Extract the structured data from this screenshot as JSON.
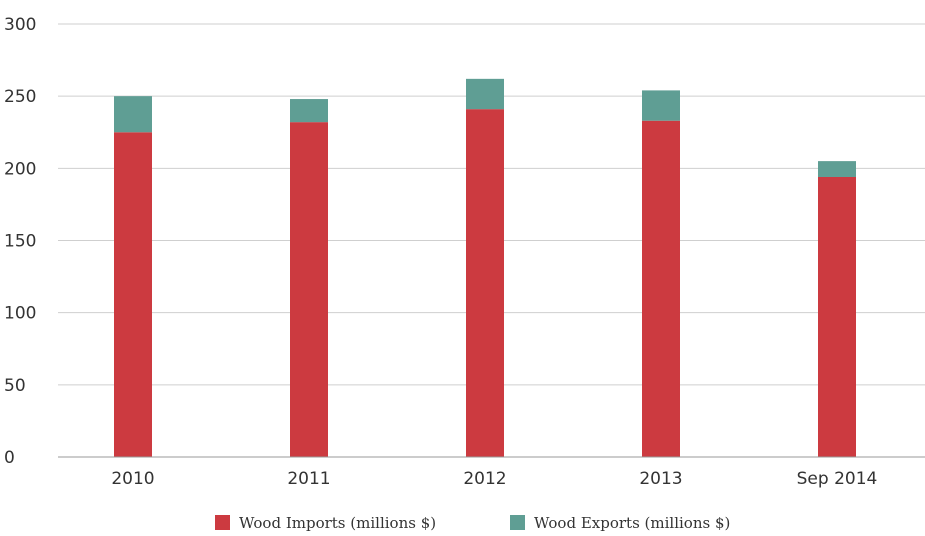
{
  "chart_data": {
    "type": "bar",
    "stacked": true,
    "categories": [
      "2010",
      "2011",
      "2012",
      "2013",
      "Sep 2014"
    ],
    "series": [
      {
        "name": "Wood Imports (millions $)",
        "color": "#cc3a40",
        "values": [
          225,
          232,
          241,
          233,
          194
        ]
      },
      {
        "name": "Wood Exports (millions $)",
        "color": "#5f9e94",
        "values": [
          25,
          16,
          21,
          21,
          11
        ]
      }
    ],
    "ylim": [
      0,
      300
    ],
    "yticks": [
      0,
      50,
      100,
      150,
      200,
      250,
      300
    ],
    "grid": true,
    "legend_position": "bottom-center",
    "title": "",
    "xlabel": "",
    "ylabel": ""
  }
}
